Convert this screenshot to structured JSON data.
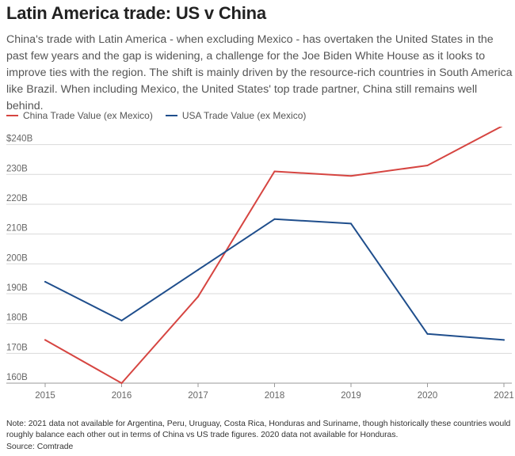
{
  "title": "Latin America trade: US v China",
  "subtitle": "China's trade with Latin America - when excluding Mexico - has overtaken the United States in the past few years and the gap is widening, a challenge for the Joe Biden White House as it looks to improve ties with the region. The shift is mainly driven by the resource-rich countries in South America like Brazil. When including Mexico, the United States' top trade partner, China still remains well behind.",
  "note": "Note: 2021 data not available for Argentina, Peru, Uruguay, Costa Rica, Honduras and Suriname, though historically these countries would roughly balance each other out in terms of China vs US trade figures. 2020 data not available for Honduras.",
  "source": "Source: Comtrade",
  "chart_data": {
    "type": "line",
    "title": "Latin America trade: US v China",
    "xlabel": "",
    "ylabel": "",
    "x": [
      "2015",
      "2016",
      "2017",
      "2018",
      "2019",
      "2020",
      "2021"
    ],
    "ylim": [
      160,
      246
    ],
    "yticks": [
      160,
      170,
      180,
      190,
      200,
      210,
      220,
      230,
      240
    ],
    "ytick_labels": [
      "160B",
      "170B",
      "180B",
      "190B",
      "200B",
      "210B",
      "220B",
      "230B",
      "$240B"
    ],
    "grid": true,
    "legend_position": "top-left",
    "series": [
      {
        "name": "China Trade Value (ex Mexico)",
        "color": "#d64541",
        "values": [
          174.5,
          160,
          189,
          231,
          229.5,
          233,
          246.5
        ]
      },
      {
        "name": "USA Trade Value (ex Mexico)",
        "color": "#1f4e8c",
        "values": [
          194,
          181,
          198,
          215,
          213.5,
          176.5,
          174.5
        ]
      }
    ]
  }
}
